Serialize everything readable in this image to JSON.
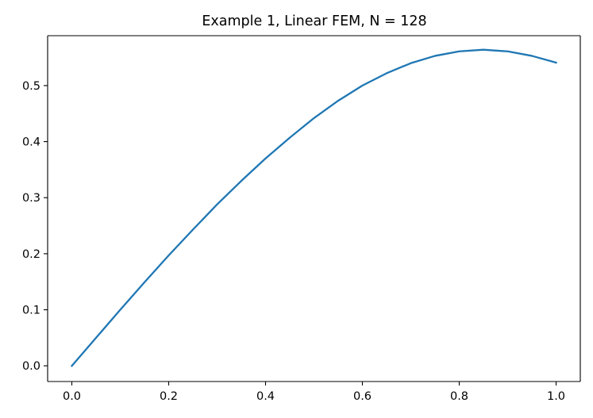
{
  "chart_data": {
    "type": "line",
    "title": "Example 1, Linear FEM, N = 128",
    "xlabel": "",
    "ylabel": "",
    "xlim": [
      -0.05,
      1.05
    ],
    "ylim": [
      -0.028,
      0.589
    ],
    "xticks": [
      0.0,
      0.2,
      0.4,
      0.6,
      0.8,
      1.0
    ],
    "xtick_labels": [
      "0.0",
      "0.2",
      "0.4",
      "0.6",
      "0.8",
      "1.0"
    ],
    "yticks": [
      0.0,
      0.1,
      0.2,
      0.3,
      0.4,
      0.5
    ],
    "ytick_labels": [
      "0.0",
      "0.1",
      "0.2",
      "0.3",
      "0.4",
      "0.5"
    ],
    "grid": false,
    "legend": "none",
    "series": [
      {
        "color": "#1f77b4",
        "x": [
          0.0,
          0.05,
          0.1,
          0.15,
          0.2,
          0.25,
          0.3,
          0.35,
          0.4,
          0.45,
          0.5,
          0.55,
          0.6,
          0.65,
          0.7,
          0.75,
          0.8,
          0.85,
          0.9,
          0.95,
          1.0
        ],
        "y": [
          0.0,
          0.05,
          0.1,
          0.149,
          0.197,
          0.243,
          0.288,
          0.33,
          0.37,
          0.407,
          0.442,
          0.473,
          0.5,
          0.522,
          0.54,
          0.553,
          0.561,
          0.564,
          0.561,
          0.553,
          0.541
        ]
      }
    ]
  }
}
